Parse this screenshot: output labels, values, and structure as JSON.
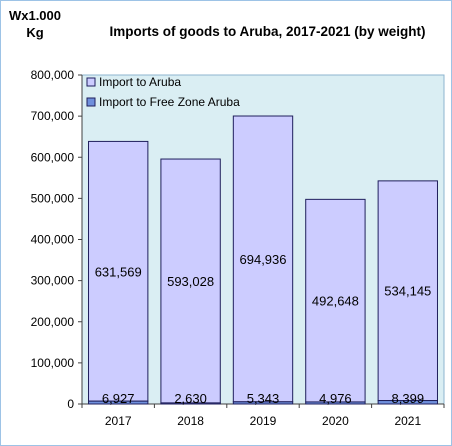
{
  "header": {
    "unit_line1": "Wx1.000",
    "unit_line2": "Kg"
  },
  "chart_data": {
    "type": "bar",
    "stacked": true,
    "title": "Imports of goods to Aruba, 2017-2021 (by weight)",
    "categories": [
      "2017",
      "2018",
      "2019",
      "2020",
      "2021"
    ],
    "series": [
      {
        "name": "Import to Aruba",
        "values": [
          631569,
          593028,
          694936,
          492648,
          534145
        ],
        "labels": [
          "631,569",
          "593,028",
          "694,936",
          "492,648",
          "534,145"
        ],
        "color": "#ccccff"
      },
      {
        "name": "Import to Free Zone Aruba",
        "values": [
          6927,
          2630,
          5343,
          4976,
          8399
        ],
        "labels": [
          "6,927",
          "2,630",
          "5,343",
          "4,976",
          "8,399"
        ],
        "color": "#6f8fdc"
      }
    ],
    "ylim": [
      0,
      800000
    ],
    "yticks": [
      0,
      100000,
      200000,
      300000,
      400000,
      500000,
      600000,
      700000,
      800000
    ],
    "ytick_labels": [
      "0",
      "100,000",
      "200,000",
      "300,000",
      "400,000",
      "500,000",
      "600,000",
      "700,000",
      "800,000"
    ],
    "legend_position": "top-left",
    "grid": false,
    "colors": {
      "plot_background": "#daeef3",
      "bar_edge": "#1f1f5c",
      "border": "#9dc3e6"
    }
  }
}
